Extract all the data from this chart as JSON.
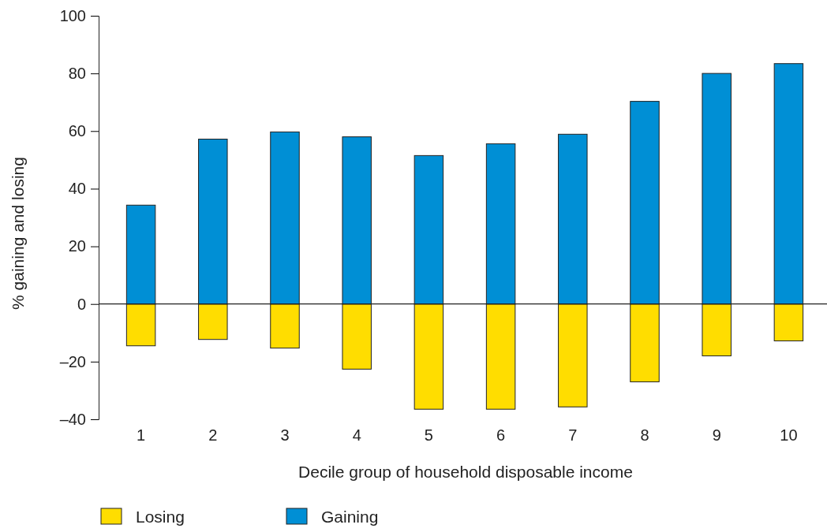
{
  "chart_data": {
    "type": "bar",
    "xlabel": "Decile group of household disposable income",
    "ylabel": "% gaining and losing",
    "categories": [
      "1",
      "2",
      "3",
      "4",
      "5",
      "6",
      "7",
      "8",
      "9",
      "10"
    ],
    "series": [
      {
        "name": "Losing",
        "color": "#ffdd00",
        "values": [
          -14.5,
          -12.3,
          -15.3,
          -22.6,
          -36.5,
          -36.5,
          -35.7,
          -27,
          -18,
          -12.8
        ]
      },
      {
        "name": "Gaining",
        "color": "#008fd5",
        "values": [
          34.3,
          57.2,
          59.7,
          58,
          51.5,
          55.6,
          58.9,
          70.3,
          80,
          83.4
        ]
      }
    ],
    "stacked": true,
    "ylim": [
      -40,
      100
    ],
    "yticks": [
      {
        "value": -40,
        "label": "–40"
      },
      {
        "value": -20,
        "label": "–20"
      },
      0,
      20,
      40,
      60,
      80,
      100
    ],
    "legend": "bottom"
  }
}
